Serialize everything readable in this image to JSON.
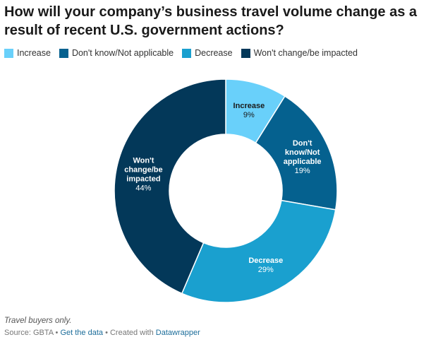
{
  "title": "How will your company’s business travel volume change as a result of recent U.S. government actions?",
  "legend": [
    {
      "label": "Increase",
      "color": "#69d0fa"
    },
    {
      "label": "Don't know/Not applicable",
      "color": "#05618f"
    },
    {
      "label": "Decrease",
      "color": "#1aa0cf"
    },
    {
      "label": "Won't change/be impacted",
      "color": "#033859"
    }
  ],
  "chart_data": {
    "type": "pie",
    "donut": true,
    "slices": [
      {
        "name": "Increase",
        "value": 9,
        "label_lines": [
          "Increase"
        ],
        "value_text": "9%",
        "color": "#69d0fa",
        "text_color": "#1a1a1a"
      },
      {
        "name": "Don't know/Not applicable",
        "value": 19,
        "label_lines": [
          "Don't",
          "know/Not",
          "applicable"
        ],
        "value_text": "19%",
        "color": "#05618f",
        "text_color": "#ffffff"
      },
      {
        "name": "Decrease",
        "value": 29,
        "label_lines": [
          "Decrease"
        ],
        "value_text": "29%",
        "color": "#1aa0cf",
        "text_color": "#ffffff"
      },
      {
        "name": "Won't change/be impacted",
        "value": 44,
        "label_lines": [
          "Won't",
          "change/be",
          "impacted"
        ],
        "value_text": "44%",
        "color": "#033859",
        "text_color": "#ffffff"
      }
    ]
  },
  "footer": {
    "note": "Travel buyers only.",
    "source_prefix": "Source: GBTA • ",
    "get_data": "Get the data",
    "created_prefix": " • Created with ",
    "datawrapper": "Datawrapper"
  }
}
